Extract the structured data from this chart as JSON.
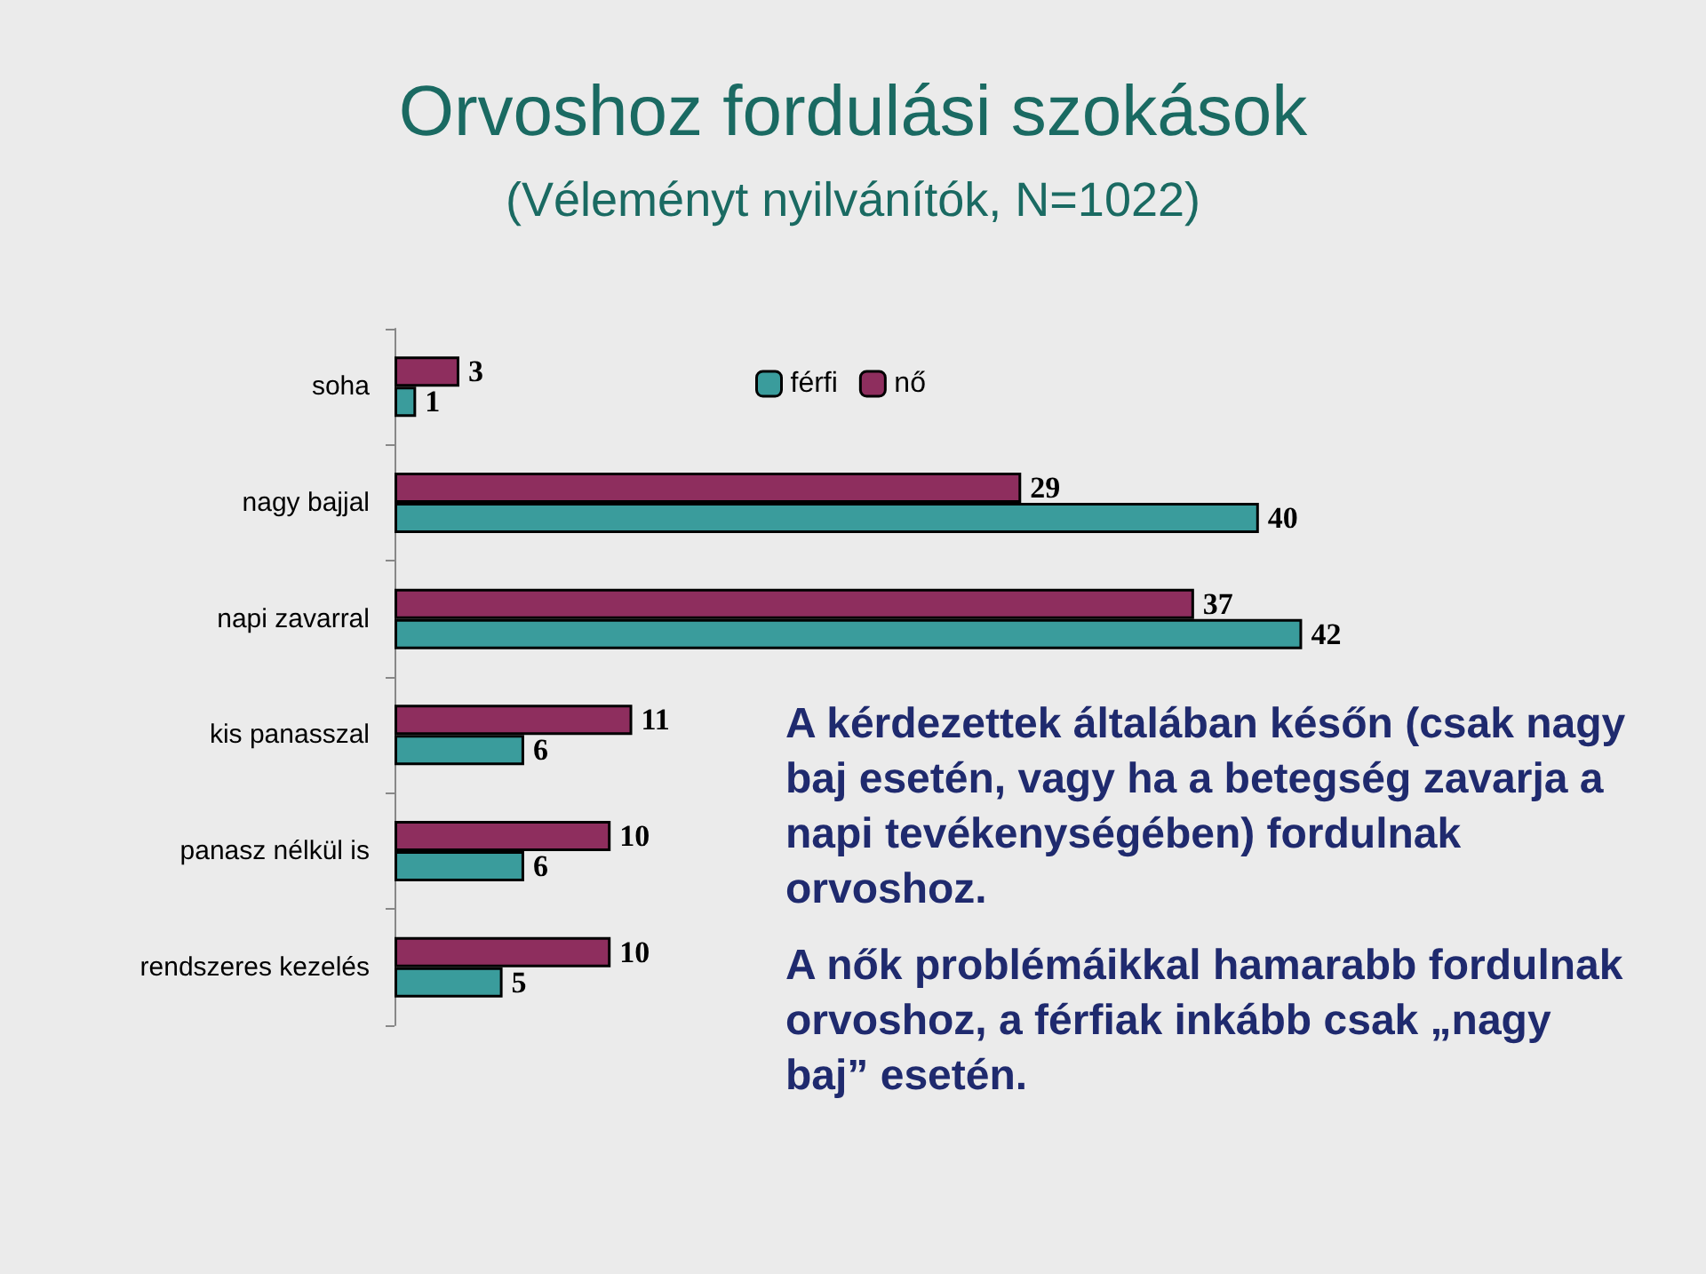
{
  "chart_data": {
    "type": "bar",
    "orientation": "horizontal",
    "title": "Orvoshoz fordulási szokások",
    "subtitle": "(Véleményt nyilvánítók, N=1022)",
    "categories": [
      "soha",
      "nagy bajjal",
      "napi zavarral",
      "kis panasszal",
      "panasz nélkül is",
      "rendszeres kezelés"
    ],
    "series": [
      {
        "name": "férfi",
        "color": "#3a9c9c",
        "values": [
          1,
          40,
          42,
          6,
          6,
          5
        ]
      },
      {
        "name": "nő",
        "color": "#8e2e5e",
        "values": [
          3,
          29,
          37,
          11,
          10,
          10
        ]
      }
    ],
    "data_labels": true,
    "legend": "top",
    "grid": false,
    "annotations": [
      "A kérdezettek általában későn (csak nagy baj esetén, vagy ha a betegség zavarja a napi tevékenységében) fordulnak orvoshoz.",
      "A nők problémáikkal hamarabb fordulnak orvoshoz, a férfiak inkább csak „nagy baj” esetén."
    ]
  }
}
